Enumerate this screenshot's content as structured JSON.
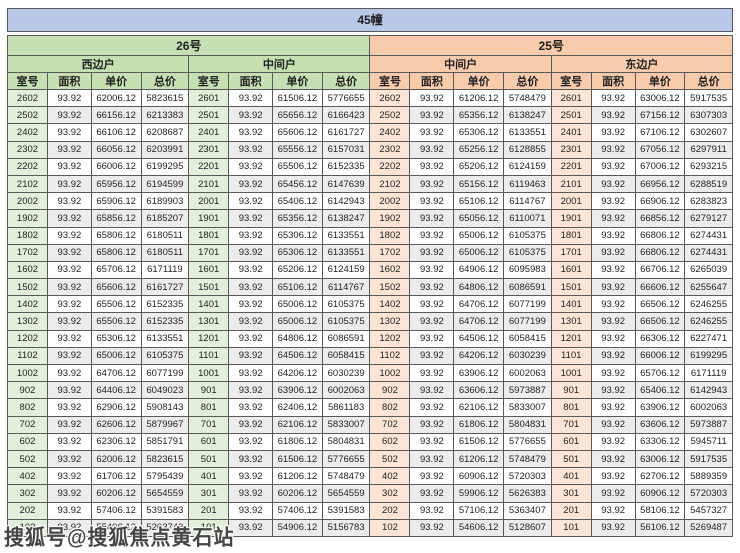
{
  "title": "45幢",
  "watermark": "搜狐号@搜狐焦点黄石站",
  "colors": {
    "titlebar": "#b9c7e8",
    "green_header": "#c6e0b4",
    "green_room": "#e2efda",
    "peach_header": "#f8cbad",
    "peach_room": "#fce4d6",
    "stripe": "#ececec",
    "border": "#595959",
    "text": "#1f1f1f"
  },
  "chart_data": {
    "type": "table",
    "columns": [
      "室号",
      "面积",
      "单价",
      "总价"
    ],
    "sections": [
      {
        "building": "26号",
        "units": [
          {
            "name": "西边户",
            "rows": [
              [
                "2602",
                "93.92",
                "62006.12",
                "5823615"
              ],
              [
                "2502",
                "93.92",
                "66156.12",
                "6213383"
              ],
              [
                "2402",
                "93.92",
                "66106.12",
                "6208687"
              ],
              [
                "2302",
                "93.92",
                "66056.12",
                "6203991"
              ],
              [
                "2202",
                "93.92",
                "66006.12",
                "6199295"
              ],
              [
                "2102",
                "93.92",
                "65956.12",
                "6194599"
              ],
              [
                "2002",
                "93.92",
                "65906.12",
                "6189903"
              ],
              [
                "1902",
                "93.92",
                "65856.12",
                "6185207"
              ],
              [
                "1802",
                "93.92",
                "65806.12",
                "6180511"
              ],
              [
                "1702",
                "93.92",
                "65806.12",
                "6180511"
              ],
              [
                "1602",
                "93.92",
                "65706.12",
                "6171119"
              ],
              [
                "1502",
                "93.92",
                "65606.12",
                "6161727"
              ],
              [
                "1402",
                "93.92",
                "65506.12",
                "6152335"
              ],
              [
                "1302",
                "93.92",
                "65506.12",
                "6152335"
              ],
              [
                "1202",
                "93.92",
                "65306.12",
                "6133551"
              ],
              [
                "1102",
                "93.92",
                "65006.12",
                "6105375"
              ],
              [
                "1002",
                "93.92",
                "64706.12",
                "6077199"
              ],
              [
                "902",
                "93.92",
                "64406.12",
                "6049023"
              ],
              [
                "802",
                "93.92",
                "62906.12",
                "5908143"
              ],
              [
                "702",
                "93.92",
                "62606.12",
                "5879967"
              ],
              [
                "602",
                "93.92",
                "62306.12",
                "5851791"
              ],
              [
                "502",
                "93.92",
                "62006.12",
                "5823615"
              ],
              [
                "402",
                "93.92",
                "61706.12",
                "5795439"
              ],
              [
                "302",
                "93.92",
                "60206.12",
                "5654559"
              ],
              [
                "202",
                "93.92",
                "57406.12",
                "5391583"
              ],
              [
                "102",
                "93.92",
                "55406.12",
                "5203743"
              ]
            ]
          },
          {
            "name": "中间户",
            "rows": [
              [
                "2601",
                "93.92",
                "61506.12",
                "5776655"
              ],
              [
                "2501",
                "93.92",
                "65656.12",
                "6166423"
              ],
              [
                "2401",
                "93.92",
                "65606.12",
                "6161727"
              ],
              [
                "2301",
                "93.92",
                "65556.12",
                "6157031"
              ],
              [
                "2201",
                "93.92",
                "65506.12",
                "6152335"
              ],
              [
                "2101",
                "93.92",
                "65456.12",
                "6147639"
              ],
              [
                "2001",
                "93.92",
                "65406.12",
                "6142943"
              ],
              [
                "1901",
                "93.92",
                "65356.12",
                "6138247"
              ],
              [
                "1801",
                "93.92",
                "65306.12",
                "6133551"
              ],
              [
                "1701",
                "93.92",
                "65306.12",
                "6133551"
              ],
              [
                "1601",
                "93.92",
                "65206.12",
                "6124159"
              ],
              [
                "1501",
                "93.92",
                "65106.12",
                "6114767"
              ],
              [
                "1401",
                "93.92",
                "65006.12",
                "6105375"
              ],
              [
                "1301",
                "93.92",
                "65006.12",
                "6105375"
              ],
              [
                "1201",
                "93.92",
                "64806.12",
                "6086591"
              ],
              [
                "1101",
                "93.92",
                "64506.12",
                "6058415"
              ],
              [
                "1001",
                "93.92",
                "64206.12",
                "6030239"
              ],
              [
                "901",
                "93.92",
                "63906.12",
                "6002063"
              ],
              [
                "801",
                "93.92",
                "62406.12",
                "5861183"
              ],
              [
                "701",
                "93.92",
                "62106.12",
                "5833007"
              ],
              [
                "601",
                "93.92",
                "61806.12",
                "5804831"
              ],
              [
                "501",
                "93.92",
                "61506.12",
                "5776655"
              ],
              [
                "401",
                "93.92",
                "61206.12",
                "5748479"
              ],
              [
                "301",
                "93.92",
                "60206.12",
                "5654559"
              ],
              [
                "201",
                "93.92",
                "57406.12",
                "5391583"
              ],
              [
                "101",
                "93.92",
                "54906.12",
                "5156783"
              ]
            ]
          }
        ]
      },
      {
        "building": "25号",
        "units": [
          {
            "name": "中间户",
            "rows": [
              [
                "2602",
                "93.92",
                "61206.12",
                "5748479"
              ],
              [
                "2502",
                "93.92",
                "65356.12",
                "6138247"
              ],
              [
                "2402",
                "93.92",
                "65306.12",
                "6133551"
              ],
              [
                "2302",
                "93.92",
                "65256.12",
                "6128855"
              ],
              [
                "2202",
                "93.92",
                "65206.12",
                "6124159"
              ],
              [
                "2102",
                "93.92",
                "65156.12",
                "6119463"
              ],
              [
                "2002",
                "93.92",
                "65106.12",
                "6114767"
              ],
              [
                "1902",
                "93.92",
                "65056.12",
                "6110071"
              ],
              [
                "1802",
                "93.92",
                "65006.12",
                "6105375"
              ],
              [
                "1702",
                "93.92",
                "65006.12",
                "6105375"
              ],
              [
                "1602",
                "93.92",
                "64906.12",
                "6095983"
              ],
              [
                "1502",
                "93.92",
                "64806.12",
                "6086591"
              ],
              [
                "1402",
                "93.92",
                "64706.12",
                "6077199"
              ],
              [
                "1302",
                "93.92",
                "64706.12",
                "6077199"
              ],
              [
                "1202",
                "93.92",
                "64506.12",
                "6058415"
              ],
              [
                "1102",
                "93.92",
                "64206.12",
                "6030239"
              ],
              [
                "1002",
                "93.92",
                "63906.12",
                "6002063"
              ],
              [
                "902",
                "93.92",
                "63606.12",
                "5973887"
              ],
              [
                "802",
                "93.92",
                "62106.12",
                "5833007"
              ],
              [
                "702",
                "93.92",
                "61806.12",
                "5804831"
              ],
              [
                "602",
                "93.92",
                "61506.12",
                "5776655"
              ],
              [
                "502",
                "93.92",
                "61206.12",
                "5748479"
              ],
              [
                "402",
                "93.92",
                "60906.12",
                "5720303"
              ],
              [
                "302",
                "93.92",
                "59906.12",
                "5626383"
              ],
              [
                "202",
                "93.92",
                "57106.12",
                "5363407"
              ],
              [
                "102",
                "93.92",
                "54606.12",
                "5128607"
              ]
            ]
          },
          {
            "name": "东边户",
            "rows": [
              [
                "2601",
                "93.92",
                "63006.12",
                "5917535"
              ],
              [
                "2501",
                "93.92",
                "67156.12",
                "6307303"
              ],
              [
                "2401",
                "93.92",
                "67106.12",
                "6302607"
              ],
              [
                "2301",
                "93.92",
                "67056.12",
                "6297911"
              ],
              [
                "2201",
                "93.92",
                "67006.12",
                "6293215"
              ],
              [
                "2101",
                "93.92",
                "66956.12",
                "6288519"
              ],
              [
                "2001",
                "93.92",
                "66906.12",
                "6283823"
              ],
              [
                "1901",
                "93.92",
                "66856.12",
                "6279127"
              ],
              [
                "1801",
                "93.92",
                "66806.12",
                "6274431"
              ],
              [
                "1701",
                "93.92",
                "66806.12",
                "6274431"
              ],
              [
                "1601",
                "93.92",
                "66706.12",
                "6265039"
              ],
              [
                "1501",
                "93.92",
                "66606.12",
                "6255647"
              ],
              [
                "1401",
                "93.92",
                "66506.12",
                "6246255"
              ],
              [
                "1301",
                "93.92",
                "66506.12",
                "6246255"
              ],
              [
                "1201",
                "93.92",
                "66306.12",
                "6227471"
              ],
              [
                "1101",
                "93.92",
                "66006.12",
                "6199295"
              ],
              [
                "1001",
                "93.92",
                "65706.12",
                "6171119"
              ],
              [
                "901",
                "93.92",
                "65406.12",
                "6142943"
              ],
              [
                "801",
                "93.92",
                "63906.12",
                "6002063"
              ],
              [
                "701",
                "93.92",
                "63606.12",
                "5973887"
              ],
              [
                "601",
                "93.92",
                "63306.12",
                "5945711"
              ],
              [
                "501",
                "93.92",
                "63006.12",
                "5917535"
              ],
              [
                "401",
                "93.92",
                "62706.12",
                "5889359"
              ],
              [
                "301",
                "93.92",
                "60906.12",
                "5720303"
              ],
              [
                "201",
                "93.92",
                "58106.12",
                "5457327"
              ],
              [
                "101",
                "93.92",
                "56106.12",
                "5269487"
              ]
            ]
          }
        ]
      }
    ]
  }
}
